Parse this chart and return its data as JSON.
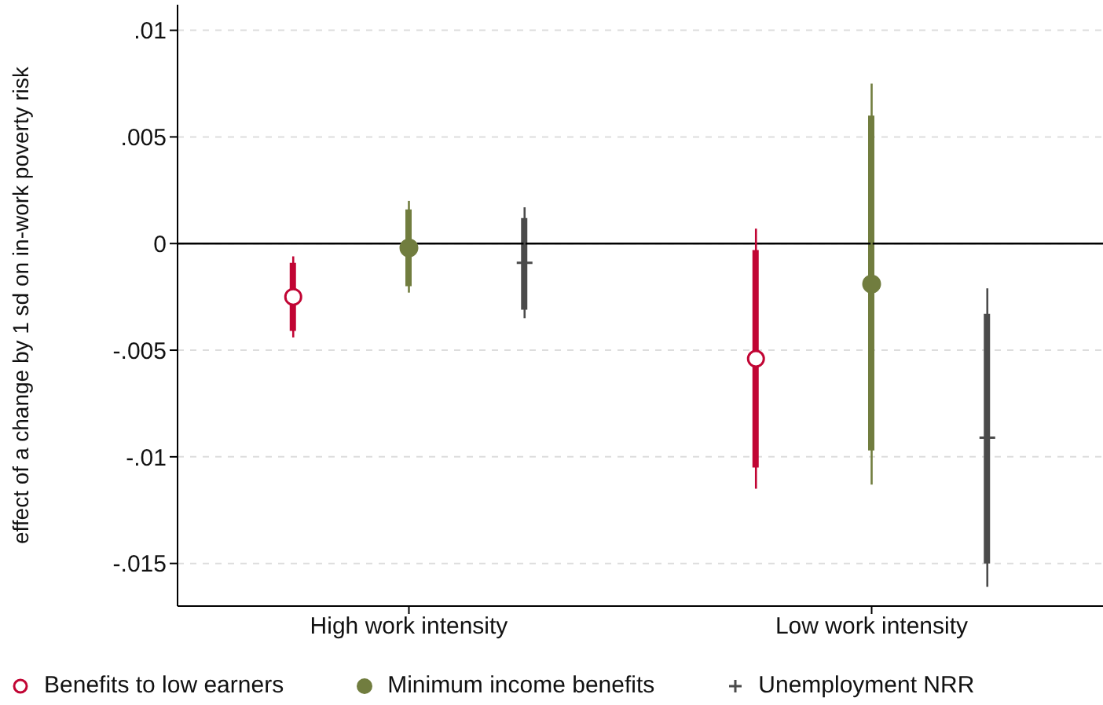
{
  "chart_data": {
    "type": "scatter",
    "ylabel": "effect of a change by 1 sd on in-work poverty risk",
    "categories": [
      "High work intensity",
      "Low work intensity"
    ],
    "series": [
      {
        "name": "Benefits to low earners",
        "color": "#c10534",
        "marker": "circle",
        "values": [
          -0.0025,
          -0.0054
        ],
        "errors": [
          [
            -0.0044,
            -0.0006
          ],
          [
            -0.0115,
            0.0007
          ]
        ]
      },
      {
        "name": "Minimum income benefits",
        "color": "#717d3f",
        "marker": "circle",
        "values": [
          -0.0002,
          -0.0019
        ],
        "errors": [
          [
            -0.0023,
            0.002
          ],
          [
            -0.0113,
            0.0075
          ]
        ]
      },
      {
        "name": "Unemployment NRR",
        "color": "#4b4b4b",
        "marker": "cross",
        "values": [
          -0.0009,
          -0.0091
        ],
        "errors": [
          [
            -0.0035,
            0.0017
          ],
          [
            -0.0161,
            -0.0021
          ]
        ]
      },
      {
        "type": "bar",
        "color": "#c10534",
        "base": [
          -0.0041,
          -0.0105
        ],
        "values": [
          0.0032,
          0.0102
        ]
      },
      {
        "type": "bar",
        "color": "#717d3f",
        "base": [
          -0.002,
          -0.0097
        ],
        "values": [
          0.0036,
          0.0157
        ]
      },
      {
        "type": "bar",
        "color": "#4b4b4b",
        "base": [
          -0.0031,
          -0.015
        ],
        "values": [
          0.0043,
          0.0117
        ]
      }
    ],
    "ylim": [
      -0.017,
      0.0112
    ],
    "yticks": [
      {
        "value": -0.015,
        "label": "-.015"
      },
      {
        "value": -0.01,
        "label": "-.01"
      },
      {
        "value": -0.005,
        "label": "-.005"
      },
      {
        "value": 0,
        "label": "0"
      },
      {
        "value": 0.005,
        "label": ".005"
      },
      {
        "value": 0.01,
        "label": ".01"
      }
    ],
    "grid": "y",
    "legend": "bottom",
    "ref_lines": [
      {
        "axis": "y",
        "value": 0,
        "color": "#000000",
        "line_style": "solid"
      }
    ]
  }
}
